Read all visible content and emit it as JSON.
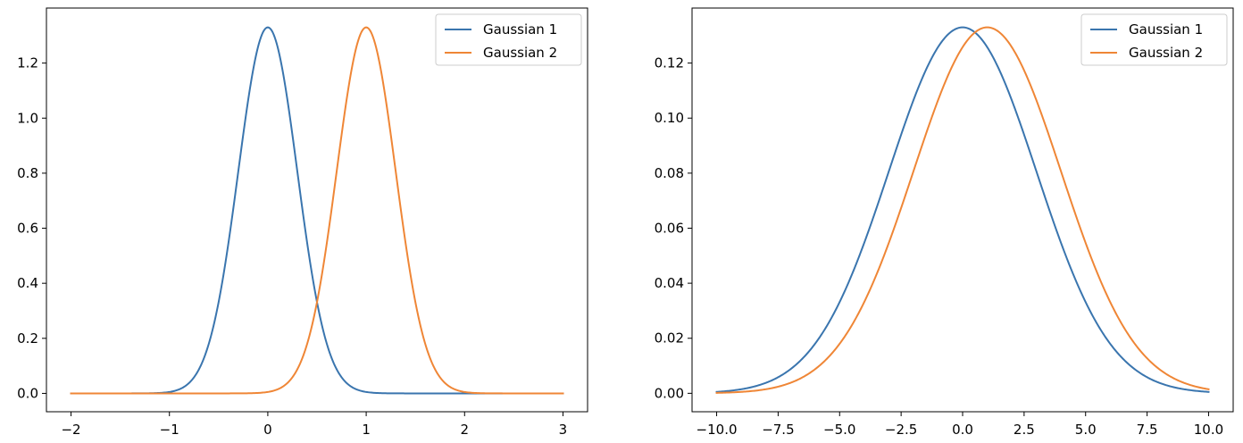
{
  "chart_data": [
    {
      "type": "line",
      "title": "",
      "xlabel": "",
      "ylabel": "",
      "xlim": [
        -2.25,
        3.25
      ],
      "ylim": [
        -0.0667,
        1.4
      ],
      "xticks": [
        -2,
        -1,
        0,
        1,
        2,
        3
      ],
      "xtick_labels": [
        "−2",
        "−1",
        "0",
        "1",
        "2",
        "3"
      ],
      "yticks": [
        0.0,
        0.2,
        0.4,
        0.6,
        0.8,
        1.0,
        1.2
      ],
      "ytick_labels": [
        "0.0",
        "0.2",
        "0.4",
        "0.6",
        "0.8",
        "1.0",
        "1.2"
      ],
      "grid": false,
      "legend_position": "top-right",
      "series": [
        {
          "name": "Gaussian 1",
          "mean": 0,
          "sigma": 0.3,
          "x_range": [
            -2,
            3
          ],
          "color": "#3a75ae"
        },
        {
          "name": "Gaussian 2",
          "mean": 1,
          "sigma": 0.3,
          "x_range": [
            -2,
            3
          ],
          "color": "#ef8636"
        }
      ]
    },
    {
      "type": "line",
      "title": "",
      "xlabel": "",
      "ylabel": "",
      "xlim": [
        -11.0,
        11.0
      ],
      "ylim": [
        -0.0067,
        0.14
      ],
      "xticks": [
        -10.0,
        -7.5,
        -5.0,
        -2.5,
        0.0,
        2.5,
        5.0,
        7.5,
        10.0
      ],
      "xtick_labels": [
        "−10.0",
        "−7.5",
        "−5.0",
        "−2.5",
        "0.0",
        "2.5",
        "5.0",
        "7.5",
        "10.0"
      ],
      "yticks": [
        0.0,
        0.02,
        0.04,
        0.06,
        0.08,
        0.1,
        0.12
      ],
      "ytick_labels": [
        "0.00",
        "0.02",
        "0.04",
        "0.06",
        "0.08",
        "0.10",
        "0.12"
      ],
      "grid": false,
      "legend_position": "top-right",
      "series": [
        {
          "name": "Gaussian 1",
          "mean": 0,
          "sigma": 3,
          "x_range": [
            -10,
            10
          ],
          "color": "#3a75ae"
        },
        {
          "name": "Gaussian 2",
          "mean": 1,
          "sigma": 3,
          "x_range": [
            -10,
            10
          ],
          "color": "#ef8636"
        }
      ]
    }
  ]
}
